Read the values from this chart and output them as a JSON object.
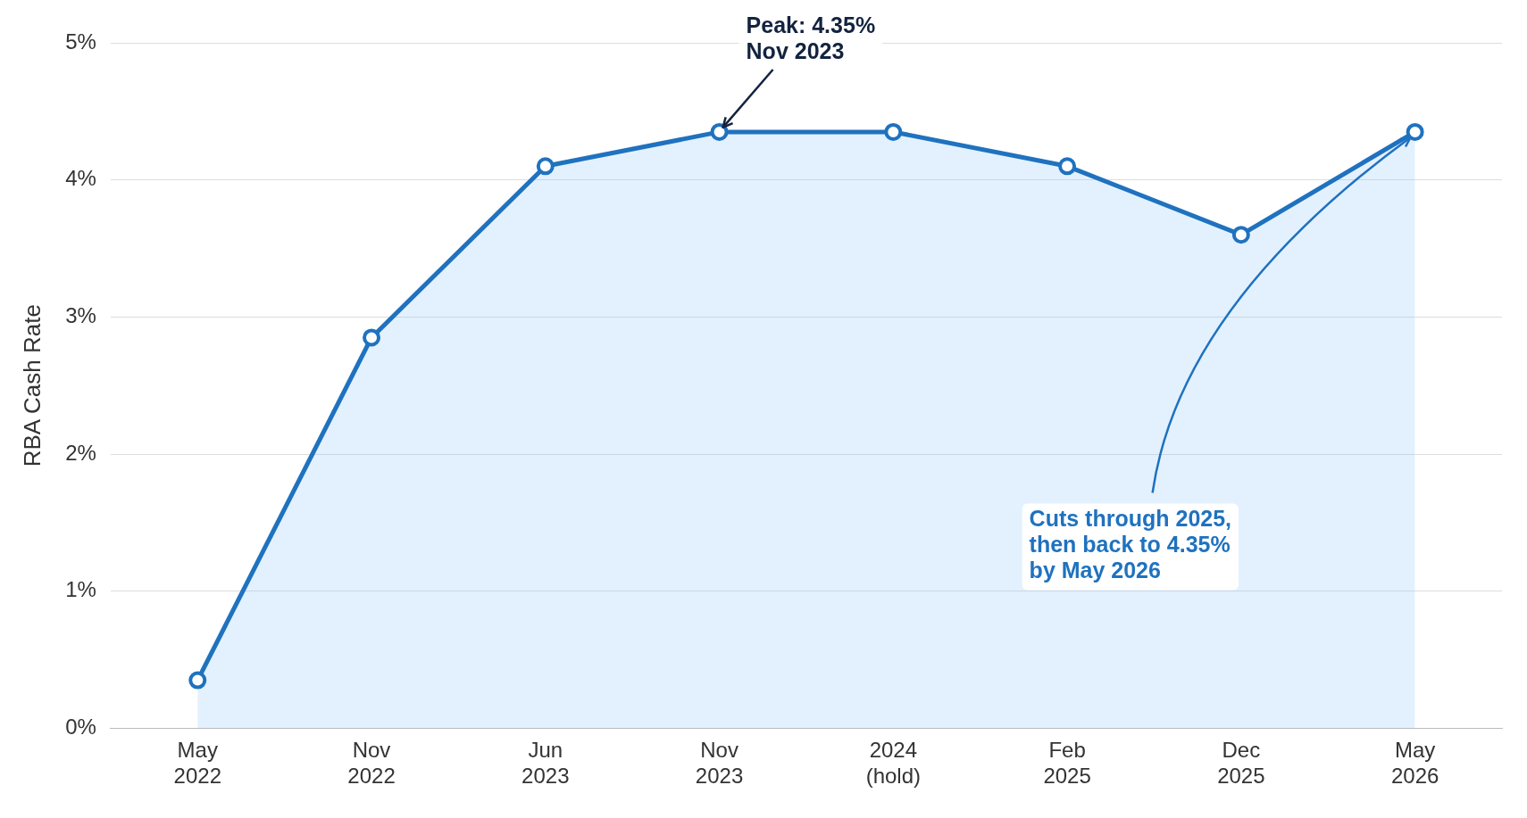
{
  "chart_data": {
    "type": "area",
    "ylabel": "RBA Cash Rate",
    "categories": [
      "May 2022",
      "Nov 2022",
      "Jun 2023",
      "Nov 2023",
      "2024 (hold)",
      "Feb 2025",
      "Dec 2025",
      "May 2026"
    ],
    "series": [
      {
        "color": "#1f72bf",
        "values": [
          0.35,
          2.85,
          4.1,
          4.35,
          4.35,
          4.1,
          3.6,
          4.35
        ]
      }
    ],
    "ylim": [
      0,
      5
    ],
    "yticks": [
      {
        "value": 0,
        "label": "0%"
      },
      {
        "value": 1,
        "label": "1%"
      },
      {
        "value": 2,
        "label": "2%"
      },
      {
        "value": 3,
        "label": "3%"
      },
      {
        "value": 4,
        "label": "4%"
      },
      {
        "value": 5,
        "label": "5%"
      }
    ],
    "grid": "y",
    "legend": false,
    "marker": "circle",
    "line_style": "solid",
    "annotations": [
      {
        "text": "Peak: 4.35%\nNov 2023",
        "x": "Nov 2023",
        "y": 4.35
      },
      {
        "text": "Cuts through 2025,\nthen back to 4.35%\nby May 2026",
        "x": "May 2026",
        "y": 4.35
      }
    ]
  }
}
